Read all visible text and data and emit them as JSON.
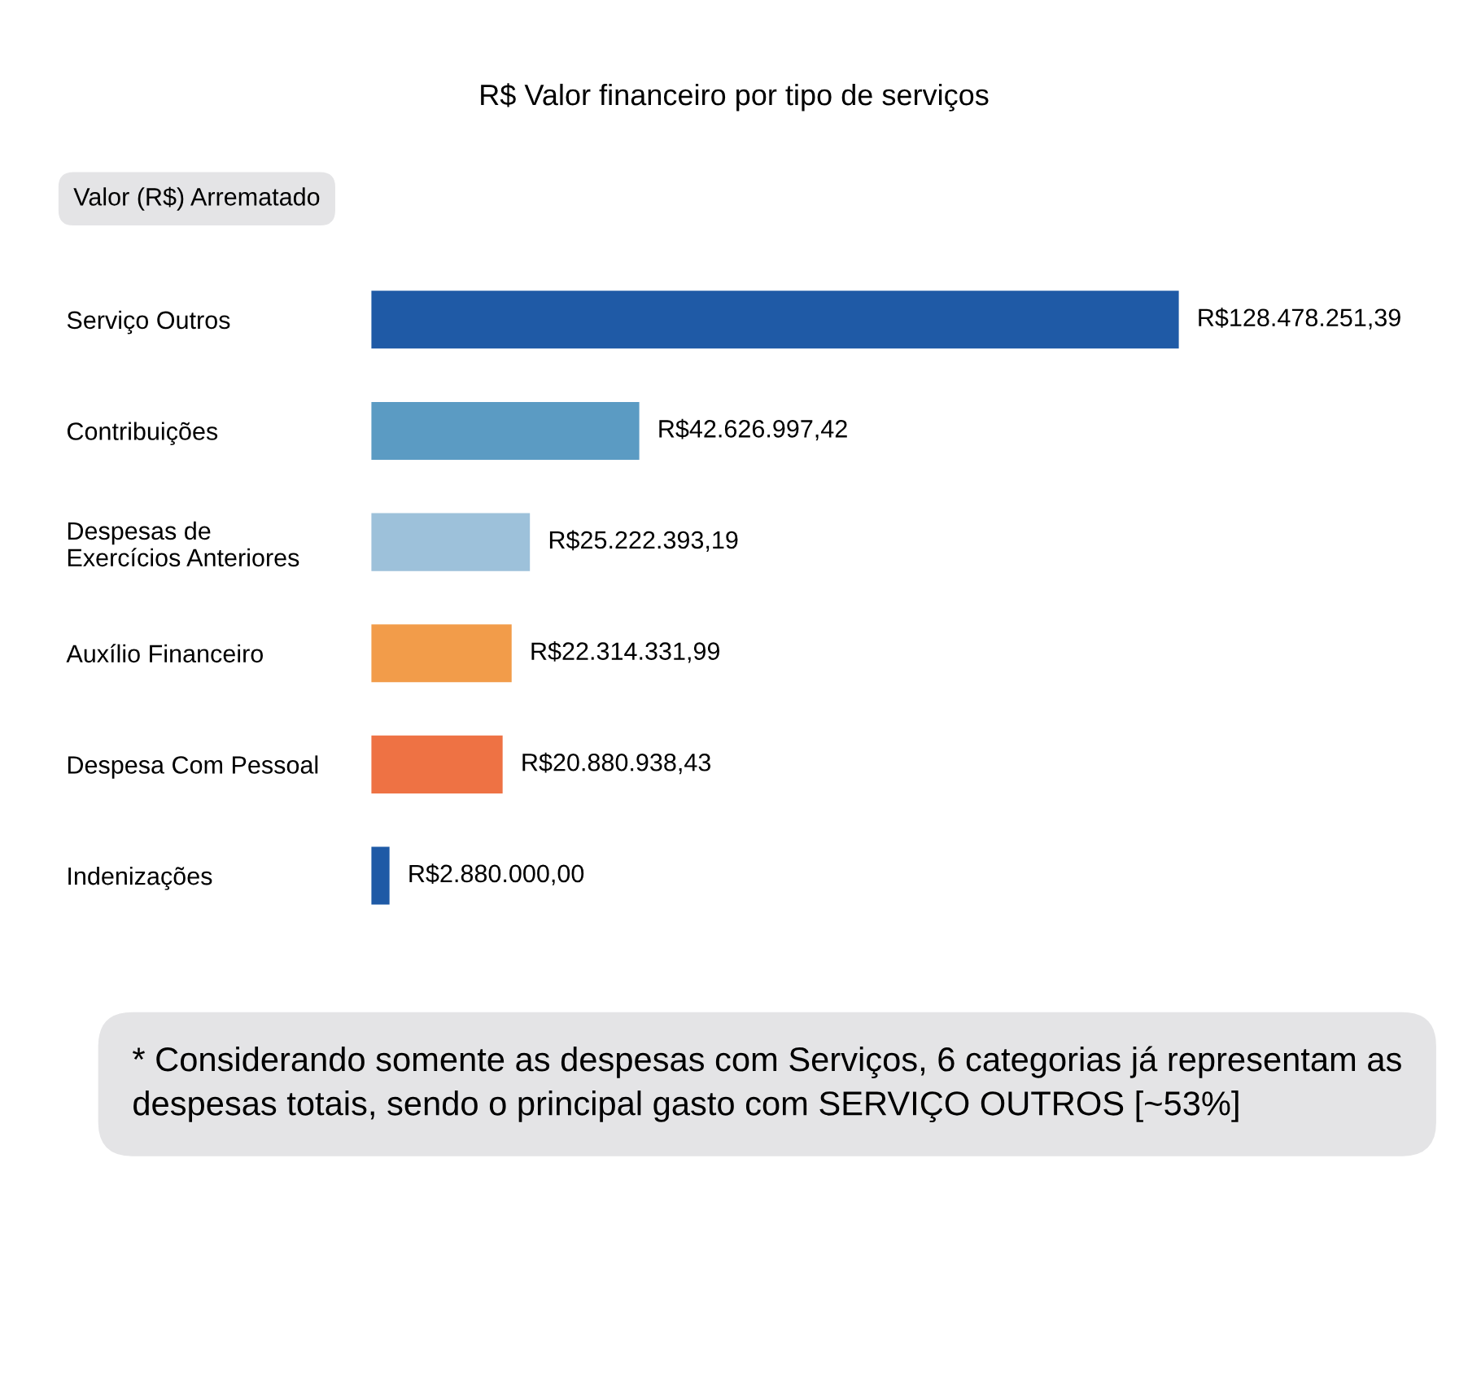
{
  "chart_data": {
    "type": "bar",
    "orientation": "horizontal",
    "title": "R$ Valor financeiro por tipo de serviços",
    "subtitle": "Valor (R$) Arrematado",
    "categories": [
      "Serviço Outros",
      "Contribuições",
      "Despesas de\nExercícios Anteriores",
      "Auxílio Financeiro",
      "Despesa Com Pessoal",
      "Indenizações"
    ],
    "values": [
      128478251.39,
      42626997.42,
      25222393.19,
      22314331.99,
      20880938.43,
      2880000.0
    ],
    "colors": [
      "#1f5aa6",
      "#5b9bc3",
      "#9dc1da",
      "#f29c4a",
      "#ee7244",
      "#1f5aa6"
    ],
    "value_labels": [
      "R$128.478.251,39",
      "R$42.626.997,42",
      "R$25.222.393,19",
      "R$22.314.331,99",
      "R$20.880.938,43",
      "R$2.880.000,00"
    ],
    "tick_labels": "y",
    "grid": false,
    "legend": false,
    "annotations": [
      "* Considerando somente as despesas com Serviços, 6 categorias já representam as despesas totais, sendo o principal gasto com SERVIÇO OUTROS [~53%]"
    ]
  }
}
